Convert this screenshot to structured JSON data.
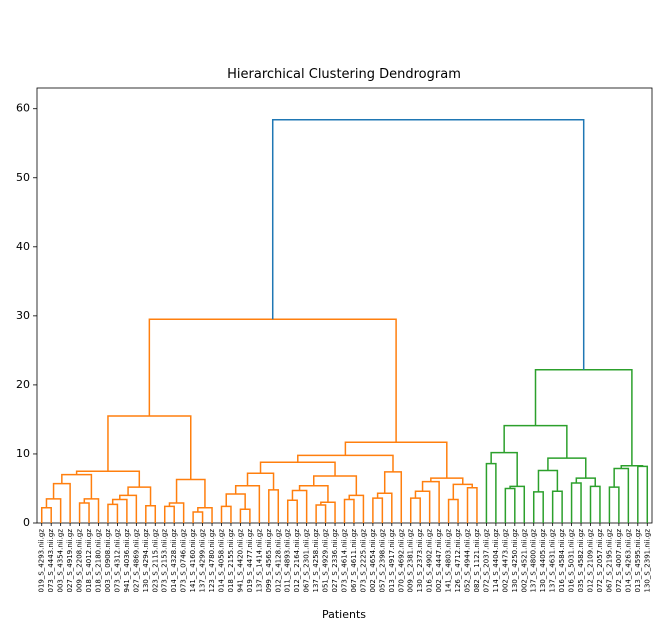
{
  "chart_data": {
    "type": "dendrogram",
    "title": "Hierarchical Clustering Dendrogram",
    "x_label": "Patients",
    "ylim": [
      0,
      63
    ],
    "yticks": [
      0,
      10,
      20,
      30,
      40,
      50,
      60
    ],
    "tree": {
      "height": 58.4,
      "color": "#1f77b4",
      "children": [
        {
          "height": 29.5,
          "color": "#ff7f0e",
          "children": [
            {
              "height": 15.5,
              "children": [
                {
                  "height": 7.5,
                  "children": [
                    {
                      "height": 7.0,
                      "children": [
                        {
                          "height": 5.7,
                          "children": [
                            {
                              "height": 3.5,
                              "children": [
                                {
                                  "height": 2.2,
                                  "children": [
                                    "019_S_4293.nii.gz",
                                    "073_S_4443.nii.gz"
                                  ]
                                },
                                "003_S_4354.nii.gz"
                              ]
                            },
                            "027_S_4919.nii.gz"
                          ]
                        },
                        {
                          "height": 3.5,
                          "children": [
                            {
                              "height": 2.9,
                              "children": [
                                "009_S_2208.nii.gz",
                                "018_S_4012.nii.gz"
                              ]
                            },
                            "018_S_2180.nii.gz"
                          ]
                        }
                      ]
                    },
                    {
                      "height": 5.2,
                      "children": [
                        {
                          "height": 4.0,
                          "children": [
                            {
                              "height": 3.4,
                              "children": [
                                {
                                  "height": 2.7,
                                  "children": [
                                    "003_S_0908.nii.gz",
                                    "073_S_4312.nii.gz"
                                  ]
                                },
                                "941_S_4036.nii.gz"
                              ]
                            },
                            "027_S_4869.nii.gz"
                          ]
                        },
                        {
                          "height": 2.5,
                          "children": [
                            "130_S_4294.nii.gz",
                            "023_S_2115.nii.gz"
                          ]
                        }
                      ]
                    }
                  ]
                },
                {
                  "height": 6.3,
                  "children": [
                    {
                      "height": 2.9,
                      "children": [
                        {
                          "height": 2.4,
                          "children": [
                            "073_S_2153.nii.gz",
                            "014_S_4328.nii.gz"
                          ]
                        },
                        "073_S_0746.nii.gz"
                      ]
                    },
                    {
                      "height": 2.2,
                      "children": [
                        {
                          "height": 1.6,
                          "children": [
                            "141_S_4160.nii.gz",
                            "137_S_4299.nii.gz"
                          ]
                        },
                        "123_S_4780.nii.gz"
                      ]
                    }
                  ]
                }
              ]
            },
            {
              "height": 11.7,
              "children": [
                {
                  "height": 9.8,
                  "children": [
                    {
                      "height": 8.8,
                      "children": [
                        {
                          "height": 7.2,
                          "children": [
                            {
                              "height": 5.4,
                              "children": [
                                {
                                  "height": 4.2,
                                  "children": [
                                    {
                                      "height": 2.4,
                                      "children": [
                                        "014_S_4058.nii.gz",
                                        "018_S_2155.nii.gz"
                                      ]
                                    },
                                    {
                                      "height": 2.0,
                                      "children": [
                                        "941_S_4420.nii.gz",
                                        "019_S_4477.nii.gz"
                                      ]
                                    }
                                  ]
                                },
                                "137_S_1414.nii.gz"
                              ]
                            },
                            {
                              "height": 4.8,
                              "children": [
                                "099_S_4565.nii.gz",
                                "012_S_4128.nii.gz"
                              ]
                            }
                          ]
                        },
                        {
                          "height": 6.8,
                          "children": [
                            {
                              "height": 5.4,
                              "children": [
                                {
                                  "height": 4.7,
                                  "children": [
                                    {
                                      "height": 3.3,
                                      "children": [
                                        "011_S_4893.nii.gz",
                                        "012_S_2164.nii.gz"
                                      ]
                                    },
                                    "067_S_2301.nii.gz"
                                  ]
                                },
                                {
                                  "height": 3.0,
                                  "children": [
                                    {
                                      "height": 2.6,
                                      "children": [
                                        "137_S_4258.nii.gz",
                                        "051_S_4929.nii.gz"
                                      ]
                                    },
                                    "027_S_2336.nii.gz"
                                  ]
                                }
                              ]
                            },
                            {
                              "height": 4.0,
                              "children": [
                                {
                                  "height": 3.4,
                                  "children": [
                                    "073_S_4614.nii.gz",
                                    "067_S_4611.nii.gz"
                                  ]
                                },
                                "073_S_2225.nii.gz"
                              ]
                            }
                          ]
                        }
                      ]
                    },
                    {
                      "height": 7.4,
                      "children": [
                        {
                          "height": 4.3,
                          "children": [
                            {
                              "height": 3.6,
                              "children": [
                                "002_S_4654.nii.gz",
                                "057_S_2398.nii.gz"
                              ]
                            },
                            "013_S_4917.nii.gz"
                          ]
                        },
                        "070_S_4692.nii.gz"
                      ]
                    }
                  ]
                },
                {
                  "height": 6.5,
                  "children": [
                    {
                      "height": 6.0,
                      "children": [
                        {
                          "height": 4.6,
                          "children": [
                            {
                              "height": 3.6,
                              "children": [
                                "009_S_2381.nii.gz",
                                "130_S_2373.nii.gz"
                              ]
                            },
                            "016_S_4902.nii.gz"
                          ]
                        },
                        "002_S_4447.nii.gz"
                      ]
                    },
                    {
                      "height": 5.6,
                      "children": [
                        {
                          "height": 3.4,
                          "children": [
                            "141_S_4803.nii.gz",
                            "126_S_4712.nii.gz"
                          ]
                        },
                        {
                          "height": 5.1,
                          "children": [
                            "052_S_4944.nii.gz",
                            "082_S_1121.nii.gz"
                          ]
                        }
                      ]
                    }
                  ]
                }
              ]
            }
          ]
        },
        {
          "height": 22.2,
          "color": "#2ca02c",
          "children": [
            {
              "height": 14.1,
              "children": [
                {
                  "height": 10.2,
                  "children": [
                    {
                      "height": 8.6,
                      "children": [
                        "072_S_2037.nii.gz",
                        "114_S_4404.nii.gz"
                      ]
                    },
                    {
                      "height": 5.3,
                      "children": [
                        {
                          "height": 5.0,
                          "children": [
                            "002_S_4473.nii.gz",
                            "130_S_4250.nii.gz"
                          ]
                        },
                        "002_S_4521.nii.gz"
                      ]
                    }
                  ]
                },
                {
                  "height": 9.4,
                  "children": [
                    {
                      "height": 7.6,
                      "children": [
                        {
                          "height": 4.5,
                          "children": [
                            "137_S_4800.nii.gz",
                            "130_S_4405.nii.gz"
                          ]
                        },
                        {
                          "height": 4.6,
                          "children": [
                            "137_S_4631.nii.gz",
                            "016_S_4584.nii.gz"
                          ]
                        }
                      ]
                    },
                    {
                      "height": 6.5,
                      "children": [
                        {
                          "height": 5.8,
                          "children": [
                            "016_S_5031.nii.gz",
                            "035_S_4582.nii.gz"
                          ]
                        },
                        {
                          "height": 5.3,
                          "children": [
                            "012_S_2109.nii.gz",
                            "072_S_2057.nii.gz"
                          ]
                        }
                      ]
                    }
                  ]
                }
              ]
            },
            {
              "height": 8.3,
              "children": [
                {
                  "height": 7.9,
                  "children": [
                    {
                      "height": 5.2,
                      "children": [
                        "067_S_2195.nii.gz",
                        "072_S_4007.nii.gz"
                      ]
                    },
                    "014_S_4263.nii.gz"
                  ]
                },
                {
                  "height": 8.2,
                  "children": [
                    "013_S_4595.nii.gz",
                    "130_S_2391.nii.gz"
                  ]
                }
              ]
            }
          ]
        }
      ]
    }
  }
}
